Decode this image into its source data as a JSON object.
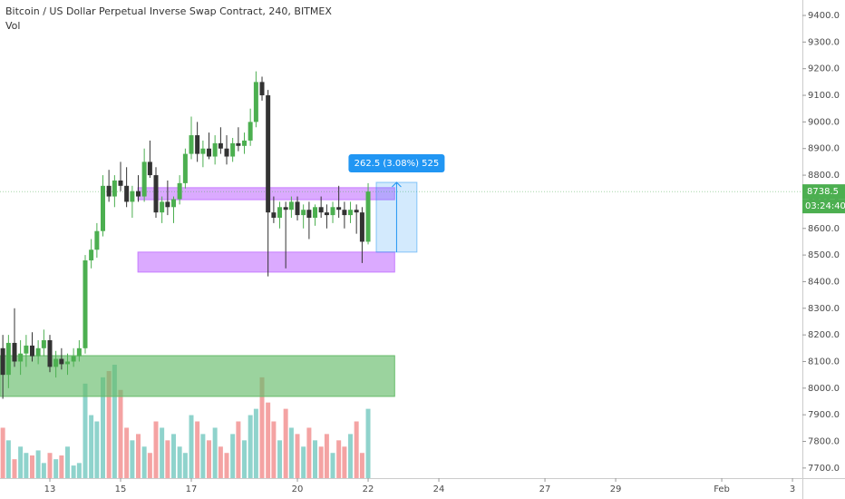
{
  "chart_data": {
    "type": "candlestick",
    "title": "Bitcoin / US Dollar Perpetual Inverse Swap Contract, 240, BITMEX",
    "subtitle": "Vol",
    "x": [
      11.67,
      11.83,
      12,
      12.17,
      12.33,
      12.5,
      12.67,
      12.83,
      13,
      13.17,
      13.33,
      13.5,
      13.67,
      13.83,
      14,
      14.17,
      14.33,
      14.5,
      14.67,
      14.83,
      15,
      15.17,
      15.33,
      15.5,
      15.67,
      15.83,
      16,
      16.17,
      16.33,
      16.5,
      16.67,
      16.83,
      17,
      17.17,
      17.33,
      17.5,
      17.67,
      17.83,
      18,
      18.17,
      18.33,
      18.5,
      18.67,
      18.83,
      19,
      19.17,
      19.33,
      19.5,
      19.67,
      19.83,
      20,
      20.17,
      20.33,
      20.5,
      20.67,
      20.83,
      21,
      21.17,
      21.33,
      21.5,
      21.67,
      21.83,
      22
    ],
    "open": [
      8150,
      8050,
      8170,
      8100,
      8130,
      8160,
      8120,
      8150,
      8180,
      8080,
      8110,
      8090,
      8100,
      8120,
      8150,
      8480,
      8520,
      8590,
      8760,
      8720,
      8780,
      8760,
      8700,
      8740,
      8720,
      8850,
      8800,
      8660,
      8700,
      8680,
      8710,
      8770,
      8880,
      8950,
      8880,
      8900,
      8870,
      8920,
      8900,
      8870,
      8920,
      8910,
      8930,
      9000,
      9150,
      9100,
      8660,
      8640,
      8680,
      8670,
      8700,
      8650,
      8670,
      8640,
      8680,
      8660,
      8650,
      8680,
      8670,
      8650,
      8670,
      8660,
      8550
    ],
    "high": [
      8200,
      8200,
      8300,
      8180,
      8200,
      8210,
      8180,
      8220,
      8200,
      8140,
      8150,
      8130,
      8150,
      8180,
      8500,
      8560,
      8620,
      8800,
      8820,
      8800,
      8850,
      8830,
      8760,
      8800,
      8900,
      8930,
      8830,
      8720,
      8780,
      8720,
      8800,
      8900,
      9020,
      9000,
      8930,
      8960,
      8950,
      8980,
      8950,
      8940,
      8980,
      8960,
      9050,
      9190,
      9170,
      9120,
      8720,
      8700,
      8700,
      8720,
      8720,
      8690,
      8700,
      8690,
      8720,
      8690,
      8700,
      8760,
      8700,
      8700,
      8690,
      8680,
      8770
    ],
    "low": [
      7960,
      8000,
      8080,
      8050,
      8080,
      8100,
      8090,
      8120,
      8060,
      8040,
      8070,
      8050,
      8080,
      8100,
      8130,
      8450,
      8490,
      8570,
      8700,
      8680,
      8740,
      8680,
      8640,
      8700,
      8700,
      8790,
      8640,
      8620,
      8650,
      8620,
      8690,
      8750,
      8860,
      8850,
      8830,
      8860,
      8840,
      8880,
      8840,
      8850,
      8890,
      8880,
      8910,
      8980,
      9080,
      8420,
      8620,
      8600,
      8450,
      8640,
      8630,
      8600,
      8560,
      8610,
      8640,
      8600,
      8620,
      8640,
      8600,
      8620,
      8580,
      8470,
      8540
    ],
    "close": [
      8050,
      8170,
      8100,
      8130,
      8160,
      8120,
      8150,
      8180,
      8080,
      8110,
      8090,
      8100,
      8120,
      8150,
      8480,
      8520,
      8590,
      8760,
      8720,
      8780,
      8760,
      8700,
      8740,
      8720,
      8850,
      8800,
      8660,
      8700,
      8680,
      8710,
      8770,
      8880,
      8950,
      8880,
      8900,
      8870,
      8920,
      8900,
      8870,
      8920,
      8910,
      8930,
      9000,
      9150,
      9100,
      8660,
      8640,
      8680,
      8670,
      8700,
      8650,
      8670,
      8640,
      8680,
      8660,
      8650,
      8680,
      8670,
      8650,
      8670,
      8660,
      8550,
      8738.5
    ],
    "volume": [
      40,
      30,
      15,
      25,
      20,
      18,
      22,
      12,
      20,
      15,
      18,
      25,
      10,
      12,
      75,
      50,
      45,
      80,
      85,
      90,
      70,
      40,
      30,
      35,
      25,
      20,
      45,
      40,
      30,
      35,
      25,
      20,
      50,
      45,
      35,
      30,
      40,
      25,
      20,
      35,
      45,
      30,
      50,
      55,
      80,
      60,
      45,
      30,
      55,
      40,
      35,
      25,
      40,
      30,
      25,
      35,
      20,
      30,
      25,
      35,
      45,
      20,
      55
    ],
    "up_color": "#4caf50",
    "down_color": "#333333",
    "volume_up_color": "#8fd3cc",
    "volume_down_color": "#f4a3a3",
    "ylim": [
      7662,
      9458
    ],
    "yticks": [
      {
        "value": 7700,
        "label": "7700.0"
      },
      {
        "value": 7800,
        "label": "7800.0"
      },
      {
        "value": 7900,
        "label": "7900.0"
      },
      {
        "value": 8000,
        "label": "8000.0"
      },
      {
        "value": 8100,
        "label": "8100.0"
      },
      {
        "value": 8200,
        "label": "8200.0"
      },
      {
        "value": 8300,
        "label": "8300.0"
      },
      {
        "value": 8400,
        "label": "8400.0"
      },
      {
        "value": 8500,
        "label": "8500.0"
      },
      {
        "value": 8600,
        "label": "8600.0"
      },
      {
        "value": 8700,
        "label": "8700.0"
      },
      {
        "value": 8800,
        "label": "8800.0"
      },
      {
        "value": 8900,
        "label": "8900.0"
      },
      {
        "value": 9000,
        "label": "9000.0"
      },
      {
        "value": 9100,
        "label": "9100.0"
      },
      {
        "value": 9200,
        "label": "9200.0"
      },
      {
        "value": 9300,
        "label": "9300.0"
      },
      {
        "value": 9400,
        "label": "9400.0"
      }
    ],
    "xlim": [
      11.59,
      34.28
    ],
    "xticks": [
      13,
      15,
      17,
      20,
      22,
      24,
      27,
      29,
      {
        "value": 32,
        "label": "Feb"
      },
      {
        "value": 34,
        "label": "3"
      }
    ],
    "zones": [
      {
        "from": 15.49,
        "to": 22.75,
        "y1": 8708,
        "y2": 8753,
        "color": "#c77dff"
      },
      {
        "from": 15.49,
        "to": 22.75,
        "y1": 8436,
        "y2": 8511,
        "color": "#c77dff"
      },
      {
        "from": 11.59,
        "to": 22.75,
        "y1": 7969,
        "y2": 8122,
        "color": "#66bb6a"
      }
    ],
    "measure": {
      "from": 22.23,
      "to": 23.38,
      "y1": 8511,
      "y2": 8773,
      "label": "262.5 (3.08%) 525"
    },
    "last_price": 8738.5,
    "countdown": "03:24:40",
    "last_color": "#4caf50"
  }
}
